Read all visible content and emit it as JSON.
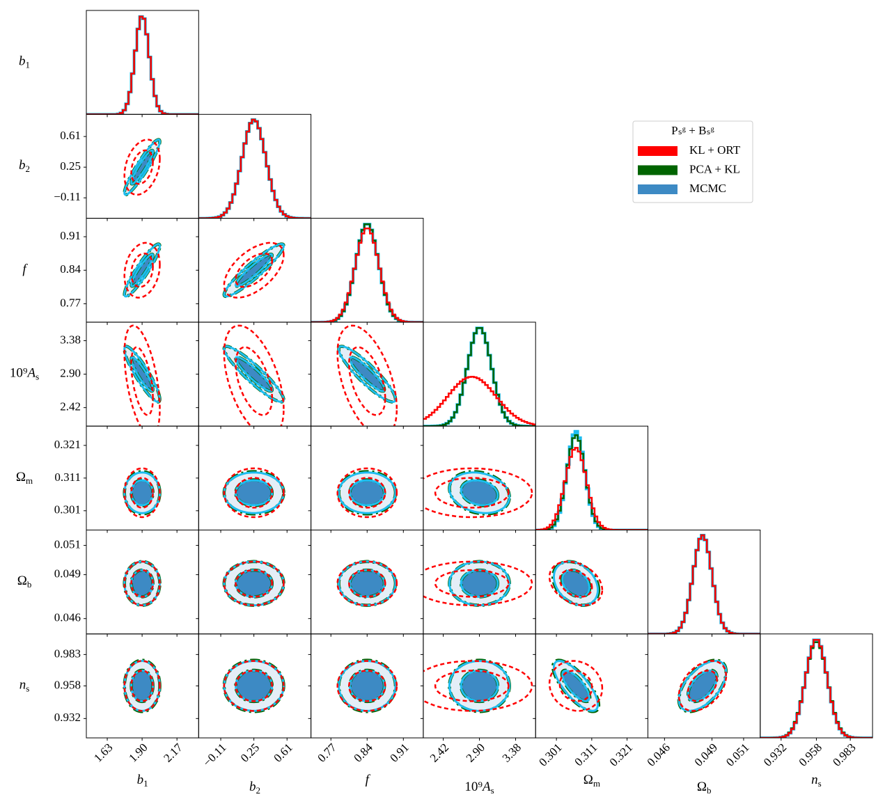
{
  "chart_data": {
    "type": "corner",
    "legend_title": "Pₛᵍ + Bₛᵍ",
    "legend_position": "upper right",
    "params": [
      {
        "symbol": "b",
        "sub": "1",
        "italic": true,
        "lim": [
          1.468,
          2.338
        ],
        "ticks": [
          {
            "value": 1.63,
            "label": "1.63"
          },
          {
            "value": 1.9,
            "label": "1.90"
          },
          {
            "value": 2.17,
            "label": "2.17"
          }
        ]
      },
      {
        "symbol": "b",
        "sub": "2",
        "italic": true,
        "lim": [
          -0.35,
          0.87
        ],
        "ticks": [
          {
            "value": -0.11,
            "label": "−0.11"
          },
          0.25,
          0.61
        ]
      },
      {
        "symbol": "f",
        "italic": true,
        "lim": [
          0.7315,
          0.9485
        ],
        "ticks": [
          0.77,
          0.84,
          0.91
        ]
      },
      {
        "prefix": "10⁹",
        "symbol": "A",
        "sub": "s",
        "italic": true,
        "lim": [
          2.155,
          3.645
        ],
        "ticks": [
          2.42,
          {
            "value": 2.9,
            "label": "2.90"
          },
          3.38
        ]
      },
      {
        "symbol": "Ω",
        "sub": "m",
        "italic": false,
        "lim": [
          0.2951,
          0.3269
        ],
        "ticks": [
          0.301,
          0.311,
          0.321
        ]
      },
      {
        "symbol": "Ω",
        "sub": "b",
        "italic": false,
        "lim": [
          0.04495,
          0.05205
        ],
        "ticks": [
          0.046,
          0.049,
          0.051
        ]
      },
      {
        "symbol": "n",
        "sub": "s",
        "italic": true,
        "lim": [
          0.9166,
          0.9994
        ],
        "ticks": [
          0.932,
          0.958,
          0.983
        ]
      }
    ],
    "series": [
      {
        "name": "MCMC",
        "color": "#3d8ac4",
        "line_color": "#1ebdf0",
        "outer_fill": "#e4eef7",
        "means": [
          1.9,
          0.25,
          0.84,
          2.9,
          0.3065,
          0.0484,
          0.958
        ],
        "sigmas": [
          0.055,
          0.13,
          0.022,
          0.16,
          0.0025,
          0.0006,
          0.008
        ],
        "correlations": [
          [
            0,
            1,
            0.93
          ],
          [
            0,
            2,
            0.92
          ],
          [
            1,
            2,
            0.93
          ],
          [
            0,
            3,
            -0.9
          ],
          [
            1,
            3,
            -0.92
          ],
          [
            2,
            3,
            -0.9
          ],
          [
            3,
            4,
            -0.2
          ],
          [
            4,
            5,
            -0.3
          ],
          [
            4,
            6,
            -0.75
          ],
          [
            5,
            6,
            0.55
          ]
        ]
      },
      {
        "name": "PCA + KL",
        "color": "#006400",
        "means": [
          1.9,
          0.25,
          0.84,
          2.9,
          0.3065,
          0.0484,
          0.958
        ],
        "sigmas": [
          0.055,
          0.13,
          0.022,
          0.16,
          0.0026,
          0.0006,
          0.0082
        ],
        "correlations": [
          [
            0,
            1,
            0.93
          ],
          [
            0,
            2,
            0.92
          ],
          [
            1,
            2,
            0.93
          ],
          [
            0,
            3,
            -0.9
          ],
          [
            1,
            3,
            -0.92
          ],
          [
            2,
            3,
            -0.9
          ],
          [
            3,
            4,
            -0.2
          ],
          [
            4,
            5,
            -0.3
          ],
          [
            4,
            6,
            -0.75
          ],
          [
            5,
            6,
            0.55
          ]
        ]
      },
      {
        "name": "KL + ORT",
        "color": "#ff0000",
        "means": [
          1.9,
          0.25,
          0.84,
          2.8,
          0.3065,
          0.0484,
          0.958
        ],
        "sigmas": [
          0.055,
          0.13,
          0.023,
          0.32,
          0.003,
          0.0006,
          0.008
        ],
        "correlations": [
          [
            0,
            1,
            0.3
          ],
          [
            0,
            2,
            0.2
          ],
          [
            1,
            2,
            0.55
          ],
          [
            0,
            3,
            -0.5
          ],
          [
            1,
            3,
            -0.5
          ],
          [
            2,
            3,
            -0.5
          ],
          [
            4,
            5,
            -0.3
          ],
          [
            4,
            6,
            -0.1
          ],
          [
            5,
            6,
            0.4
          ]
        ]
      }
    ],
    "legend_order": [
      2,
      1,
      0
    ]
  }
}
